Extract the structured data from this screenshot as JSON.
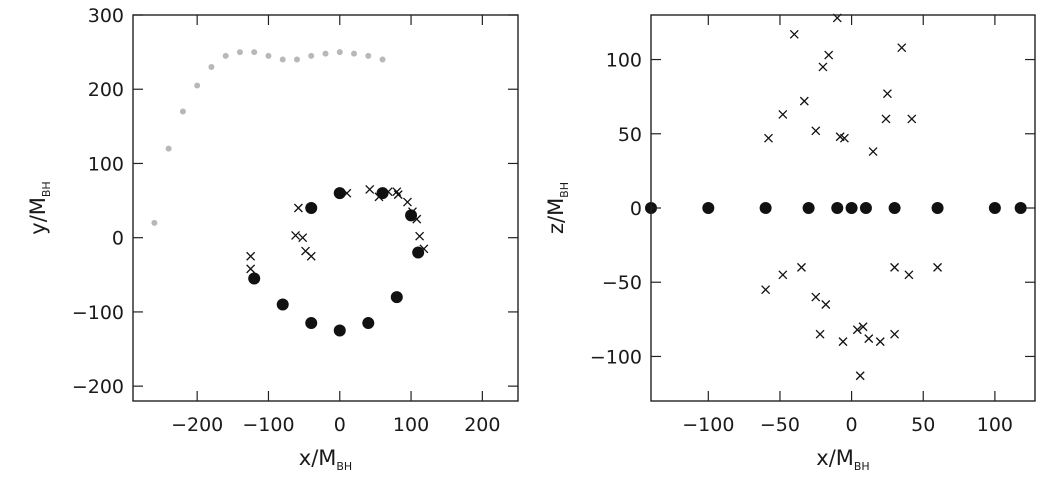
{
  "chart_data": [
    {
      "type": "scatter",
      "title": "",
      "xlabel": "x/M",
      "xlabel_sub": "BH",
      "ylabel": "y/M",
      "ylabel_sub": "BH",
      "xlim": [
        -290,
        250
      ],
      "ylim": [
        -220,
        300
      ],
      "xticks": [
        -200,
        -100,
        0,
        100,
        200
      ],
      "xtick_labels": [
        "−200",
        "−100",
        "0",
        "100",
        "200"
      ],
      "yticks": [
        -200,
        -100,
        0,
        100,
        200,
        300
      ],
      "ytick_labels": [
        "−200",
        "−100",
        "0",
        "100",
        "200",
        "300"
      ],
      "grid": false,
      "series": [
        {
          "marker": "dot-light",
          "description_of_structure": "diffuse outer arc",
          "x": [
            -260,
            -240,
            -220,
            -200,
            -180,
            -160,
            -140,
            -120,
            -100,
            -80,
            -60,
            -40,
            -20,
            0,
            20,
            40,
            60
          ],
          "y": [
            20,
            120,
            170,
            205,
            230,
            245,
            250,
            250,
            245,
            240,
            240,
            245,
            248,
            250,
            248,
            245,
            240
          ]
        },
        {
          "marker": "dot-dense",
          "x": [
            -120,
            -80,
            -40,
            0,
            40,
            80,
            110,
            100,
            60,
            0,
            -40
          ],
          "y": [
            -55,
            -90,
            -115,
            -125,
            -115,
            -80,
            -20,
            30,
            60,
            60,
            40
          ]
        },
        {
          "marker": "x",
          "x": [
            -125,
            -125,
            -58,
            -62,
            -52,
            -48,
            -40,
            10,
            42,
            55,
            68,
            82,
            95,
            108,
            112,
            118,
            102,
            80
          ],
          "y": [
            -25,
            -42,
            40,
            3,
            0,
            -18,
            -25,
            60,
            65,
            55,
            62,
            58,
            48,
            25,
            2,
            -15,
            35,
            62
          ]
        }
      ]
    },
    {
      "type": "scatter",
      "title": "",
      "xlabel": "x/M",
      "xlabel_sub": "BH",
      "ylabel": "z/M",
      "ylabel_sub": "BH",
      "xlim": [
        -140,
        128
      ],
      "ylim": [
        -130,
        130
      ],
      "xticks": [
        -100,
        -50,
        0,
        50,
        100
      ],
      "xtick_labels": [
        "−100",
        "−50",
        "0",
        "50",
        "100"
      ],
      "yticks": [
        -100,
        -50,
        0,
        50,
        100
      ],
      "ytick_labels": [
        "−100",
        "−50",
        "0",
        "50",
        "100"
      ],
      "grid": false,
      "series": [
        {
          "marker": "dot-dense",
          "x": [
            -140,
            -100,
            -60,
            -30,
            -10,
            0,
            10,
            30,
            60,
            100,
            118
          ],
          "y": [
            0,
            0,
            0,
            0,
            0,
            0,
            0,
            0,
            0,
            0,
            0
          ]
        },
        {
          "marker": "x",
          "x": [
            -10,
            -40,
            -16,
            -20,
            -33,
            35,
            25,
            -58,
            -48,
            -25,
            24,
            42,
            -5,
            -8,
            15,
            -35,
            -48,
            -60,
            30,
            40,
            60,
            -25,
            -18,
            4,
            12,
            20,
            -22,
            8,
            30,
            -6,
            6
          ],
          "y": [
            128,
            117,
            103,
            95,
            72,
            108,
            77,
            47,
            63,
            52,
            60,
            60,
            47,
            48,
            38,
            -40,
            -45,
            -55,
            -40,
            -45,
            -40,
            -60,
            -65,
            -82,
            -88,
            -90,
            -85,
            -80,
            -85,
            -90,
            -113
          ]
        }
      ]
    }
  ]
}
